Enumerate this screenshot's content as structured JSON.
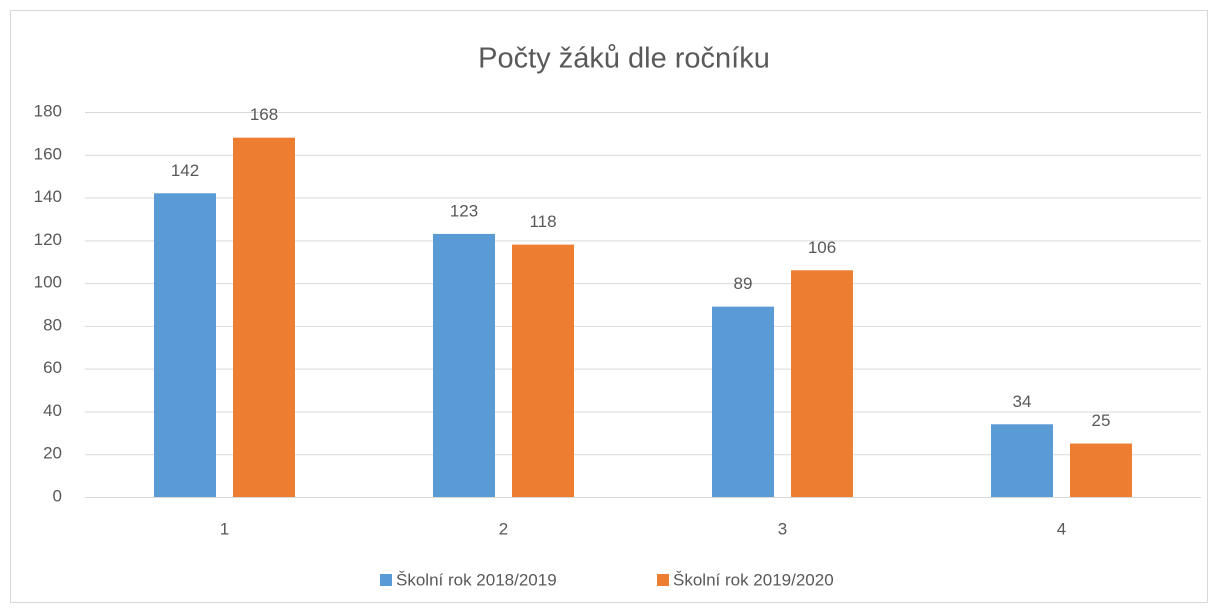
{
  "chart_data": {
    "type": "bar",
    "title": "Počty žáků dle ročníku",
    "categories": [
      "1",
      "2",
      "3",
      "4"
    ],
    "series": [
      {
        "name": "Školní rok 2018/2019",
        "color": "#5b9bd5",
        "values": [
          142,
          123,
          89,
          34
        ]
      },
      {
        "name": "Školní rok 2019/2020",
        "color": "#ed7d31",
        "values": [
          168,
          118,
          106,
          25
        ]
      }
    ],
    "ylim": [
      0,
      180
    ],
    "yticks": [
      0,
      20,
      40,
      60,
      80,
      100,
      120,
      140,
      160,
      180
    ],
    "grid": true,
    "legend": "bottom"
  }
}
